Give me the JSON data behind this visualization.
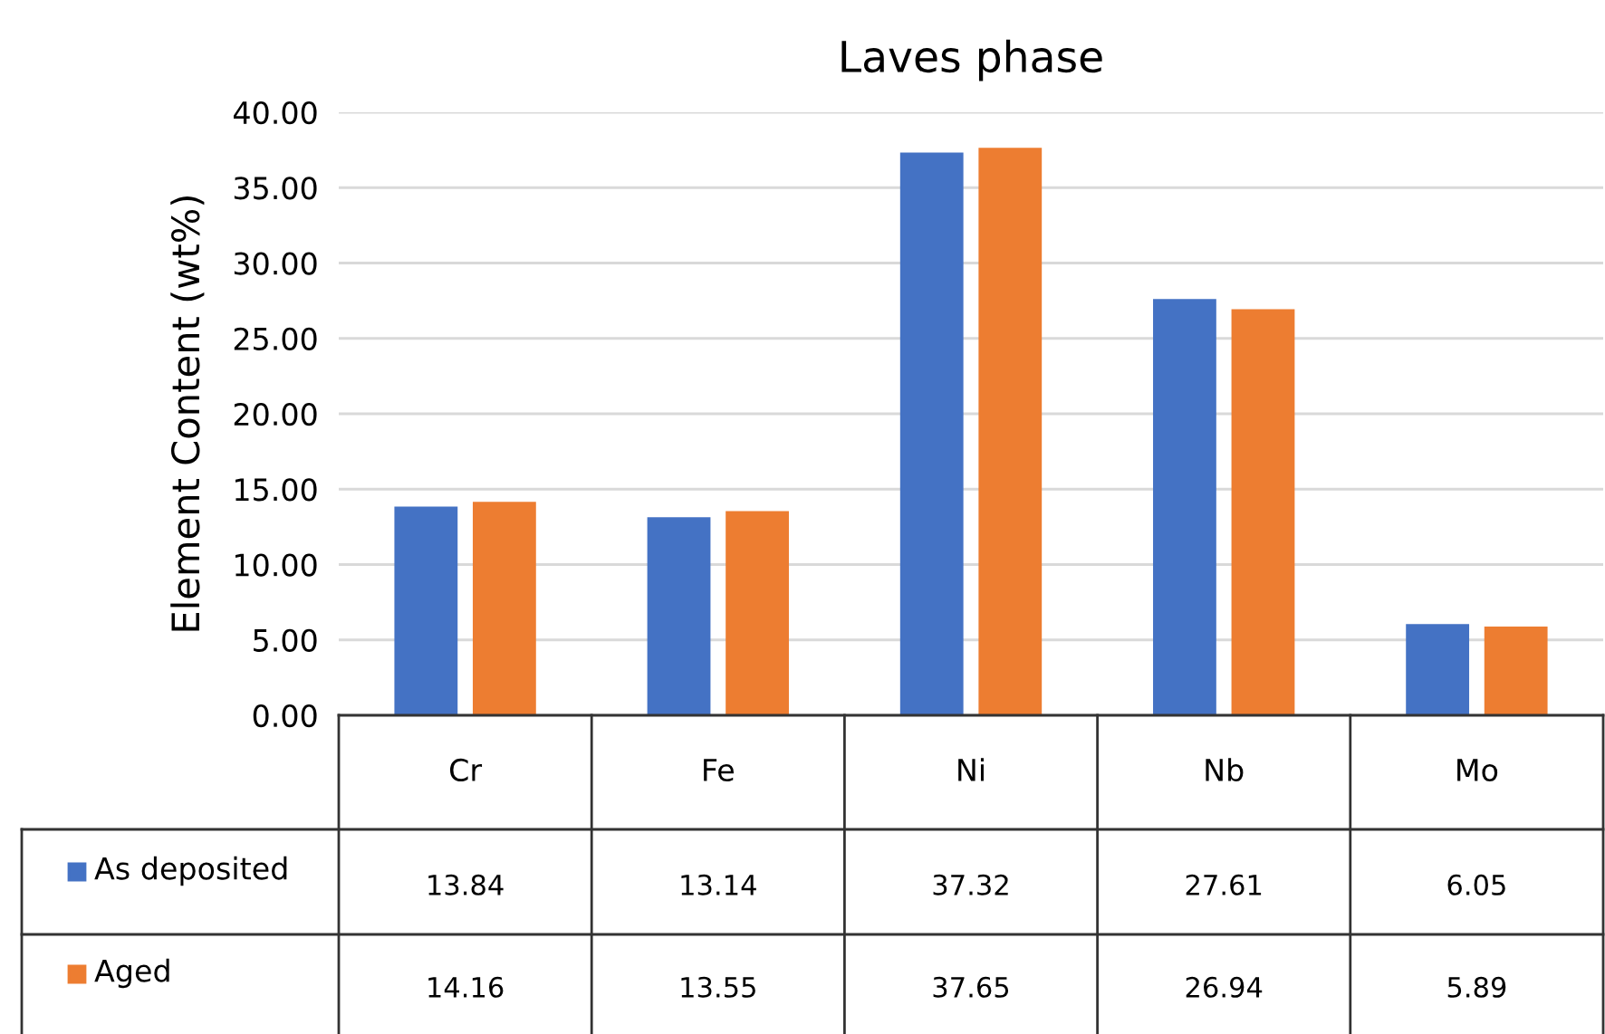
{
  "chart_data": {
    "type": "bar",
    "title": "Laves phase",
    "ylabel": "Element Content (wt%)",
    "categories": [
      "Cr",
      "Fe",
      "Ni",
      "Nb",
      "Mo"
    ],
    "series": [
      {
        "name": "As deposited",
        "color": "#4472c4",
        "values": [
          13.84,
          13.14,
          37.32,
          27.61,
          6.05
        ]
      },
      {
        "name": "Aged",
        "color": "#ed7d31",
        "values": [
          14.16,
          13.55,
          37.65,
          26.94,
          5.89
        ]
      }
    ],
    "ylim": [
      0,
      40
    ],
    "yticks": [
      {
        "value": 0,
        "label": "0.00"
      },
      {
        "value": 5,
        "label": "5.00"
      },
      {
        "value": 10,
        "label": "10.00"
      },
      {
        "value": 15,
        "label": "15.00"
      },
      {
        "value": 20,
        "label": "20.00"
      },
      {
        "value": 25,
        "label": "25.00"
      },
      {
        "value": 30,
        "label": "30.00"
      },
      {
        "value": 35,
        "label": "35.00"
      },
      {
        "value": 40,
        "label": "40.00"
      }
    ],
    "grid": "y",
    "legend": "bottom",
    "data_labels": true
  }
}
